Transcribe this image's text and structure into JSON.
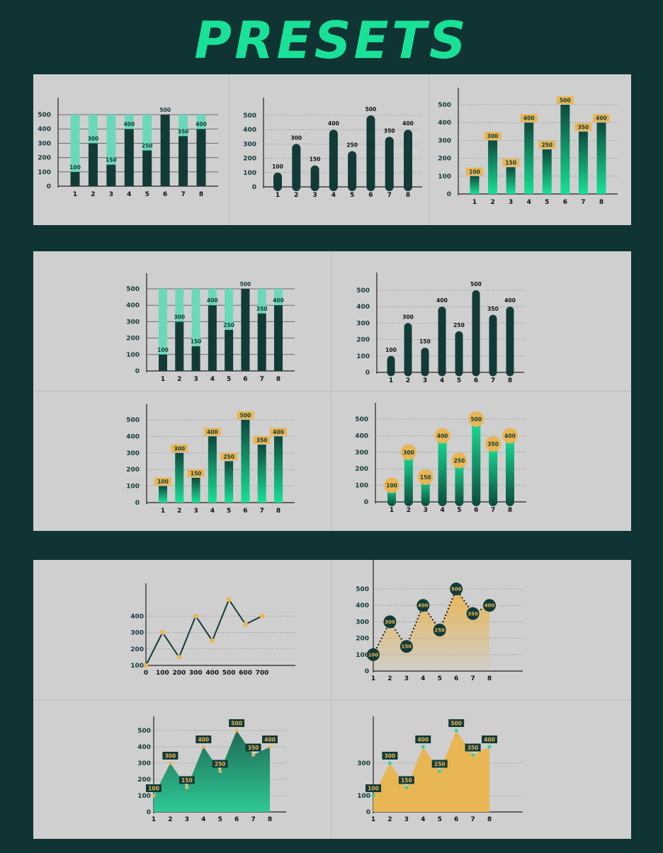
{
  "title": "PRESETS",
  "colors": {
    "background": "#0f3433",
    "accent": "#19e197",
    "dark": "#123b38",
    "light_bar": "#6ad9b9",
    "gold": "#e9b654",
    "panel": "#cfcfcf"
  },
  "chart_data": [
    {
      "type": "bar",
      "style": "stacked-background",
      "categories": [
        "1",
        "2",
        "3",
        "4",
        "5",
        "6",
        "7",
        "8"
      ],
      "values": [
        100,
        300,
        150,
        400,
        250,
        500,
        350,
        400
      ],
      "ylim": [
        0,
        500
      ],
      "yticks": [
        0,
        100,
        200,
        300,
        400,
        500
      ],
      "data_labels": true,
      "grid": true
    },
    {
      "type": "bar",
      "style": "rounded",
      "categories": [
        "1",
        "2",
        "3",
        "4",
        "5",
        "6",
        "7",
        "8"
      ],
      "values": [
        100,
        300,
        150,
        400,
        250,
        500,
        350,
        400
      ],
      "ylim": [
        0,
        500
      ],
      "yticks": [
        0,
        100,
        200,
        300,
        400,
        500
      ],
      "data_labels": true,
      "grid": true
    },
    {
      "type": "bar",
      "style": "gradient-tag-labels",
      "categories": [
        "1",
        "2",
        "3",
        "4",
        "5",
        "6",
        "7",
        "8"
      ],
      "values": [
        100,
        300,
        150,
        400,
        250,
        500,
        350,
        400
      ],
      "ylim": [
        0,
        500
      ],
      "yticks": [
        0,
        100,
        200,
        300,
        400,
        500
      ],
      "data_labels": true,
      "grid": true
    },
    {
      "type": "bar",
      "style": "stacked-background",
      "categories": [
        "1",
        "2",
        "3",
        "4",
        "5",
        "6",
        "7",
        "8"
      ],
      "values": [
        100,
        300,
        150,
        400,
        250,
        500,
        350,
        400
      ],
      "ylim": [
        0,
        500
      ],
      "yticks": [
        0,
        100,
        200,
        300,
        400,
        500
      ],
      "data_labels": true,
      "grid": true
    },
    {
      "type": "bar",
      "style": "rounded",
      "categories": [
        "1",
        "2",
        "3",
        "4",
        "5",
        "6",
        "7",
        "8"
      ],
      "values": [
        100,
        300,
        150,
        400,
        250,
        500,
        350,
        400
      ],
      "ylim": [
        0,
        500
      ],
      "yticks": [
        0,
        100,
        200,
        300,
        400,
        500
      ],
      "data_labels": true,
      "grid": true
    },
    {
      "type": "bar",
      "style": "gradient-tag-labels",
      "categories": [
        "1",
        "2",
        "3",
        "4",
        "5",
        "6",
        "7",
        "8"
      ],
      "values": [
        100,
        300,
        150,
        400,
        250,
        500,
        350,
        400
      ],
      "ylim": [
        0,
        500
      ],
      "yticks": [
        0,
        100,
        200,
        300,
        400,
        500
      ],
      "data_labels": true,
      "grid": true
    },
    {
      "type": "bar",
      "style": "gradient-bubble-labels",
      "categories": [
        "1",
        "2",
        "3",
        "4",
        "5",
        "6",
        "7",
        "8"
      ],
      "values": [
        100,
        300,
        150,
        400,
        250,
        500,
        350,
        400
      ],
      "ylim": [
        0,
        500
      ],
      "yticks": [
        0,
        100,
        200,
        300,
        400,
        500
      ],
      "data_labels": true,
      "grid": true
    },
    {
      "type": "line",
      "style": "simple",
      "x": [
        0,
        100,
        200,
        300,
        400,
        500,
        600,
        700
      ],
      "y": [
        100,
        300,
        150,
        400,
        250,
        500,
        350,
        400
      ],
      "ylim": [
        100,
        500
      ],
      "yticks": [
        100,
        200,
        300,
        400
      ],
      "xticks": [
        "0",
        "100",
        "200",
        "300",
        "400",
        "500",
        "600",
        "700"
      ],
      "data_labels": false,
      "grid": true
    },
    {
      "type": "area",
      "style": "dotted-bubbles",
      "categories": [
        "1",
        "2",
        "3",
        "4",
        "5",
        "6",
        "7",
        "8"
      ],
      "values": [
        100,
        300,
        150,
        400,
        250,
        500,
        350,
        400
      ],
      "ylim": [
        0,
        500
      ],
      "yticks": [
        0,
        100,
        200,
        300,
        400,
        500
      ],
      "data_labels": true,
      "grid": true
    },
    {
      "type": "area",
      "style": "green-tag-labels",
      "categories": [
        "1",
        "2",
        "3",
        "4",
        "5",
        "6",
        "7",
        "8"
      ],
      "values": [
        100,
        300,
        150,
        400,
        250,
        500,
        350,
        400
      ],
      "ylim": [
        0,
        500
      ],
      "yticks": [
        0,
        100,
        200,
        300,
        400,
        500
      ],
      "data_labels": true,
      "grid": true
    },
    {
      "type": "area",
      "style": "gold-tag-labels",
      "categories": [
        "1",
        "2",
        "3",
        "4",
        "5",
        "6",
        "7",
        "8"
      ],
      "values": [
        100,
        300,
        150,
        400,
        250,
        500,
        350,
        400
      ],
      "ylim": [
        0,
        500
      ],
      "yticks": [
        0,
        100,
        300
      ],
      "data_labels": true,
      "grid": true
    }
  ]
}
